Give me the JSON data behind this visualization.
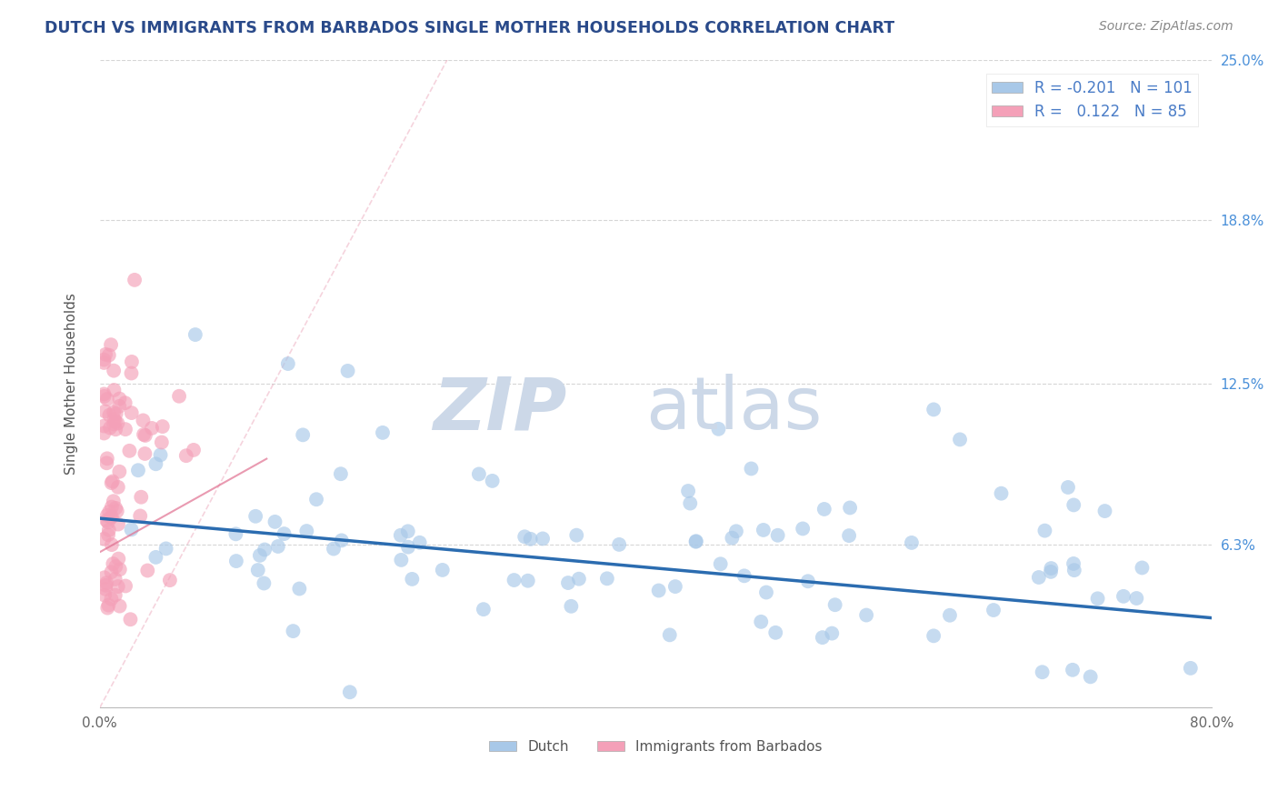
{
  "title": "DUTCH VS IMMIGRANTS FROM BARBADOS SINGLE MOTHER HOUSEHOLDS CORRELATION CHART",
  "source": "Source: ZipAtlas.com",
  "ylabel": "Single Mother Households",
  "xlim": [
    0.0,
    0.8
  ],
  "ylim": [
    0.0,
    0.25
  ],
  "xticks": [
    0.0,
    0.1,
    0.2,
    0.3,
    0.4,
    0.5,
    0.6,
    0.7,
    0.8
  ],
  "xticklabels": [
    "0.0%",
    "",
    "",
    "",
    "",
    "",
    "",
    "",
    "80.0%"
  ],
  "ytick_positions": [
    0.0,
    0.063,
    0.125,
    0.188,
    0.25
  ],
  "ytick_labels": [
    "",
    "6.3%",
    "12.5%",
    "18.8%",
    "25.0%"
  ],
  "dutch_R": -0.201,
  "dutch_N": 101,
  "barbados_R": 0.122,
  "barbados_N": 85,
  "dutch_color": "#a8c8e8",
  "dutch_line_color": "#2b6cb0",
  "barbados_color": "#f4a0b8",
  "barbados_line_color": "#e07090",
  "legend_box_dutch": "#a8c8e8",
  "legend_box_barbados": "#f4a0b8",
  "legend_text_color": "#4a7cc7",
  "watermark_zip": "ZIP",
  "watermark_atlas": "atlas",
  "watermark_color": "#ccd8e8",
  "background_color": "#ffffff",
  "grid_color": "#cccccc",
  "dutch_line_intercept": 0.073,
  "dutch_line_slope": -0.048,
  "barbados_line_intercept": 0.055,
  "barbados_line_slope": 0.25
}
